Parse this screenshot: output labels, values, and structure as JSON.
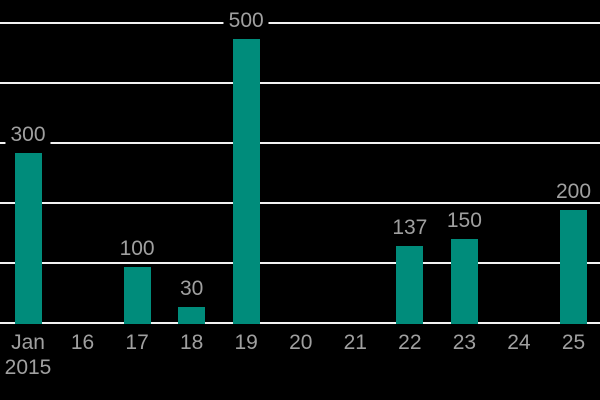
{
  "chart_data": {
    "type": "bar",
    "title": "",
    "xlabel": "",
    "ylabel": "",
    "categories": [
      "Jan 2015",
      "16",
      "17",
      "18",
      "19",
      "20",
      "21",
      "22",
      "23",
      "24",
      "25"
    ],
    "x_tick_lines": [
      [
        "Jan",
        "2015"
      ],
      [
        "16"
      ],
      [
        "17"
      ],
      [
        "18"
      ],
      [
        "19"
      ],
      [
        "20"
      ],
      [
        "21"
      ],
      [
        "22"
      ],
      [
        "23"
      ],
      [
        "24"
      ],
      [
        "25"
      ]
    ],
    "values": [
      300,
      0,
      100,
      30,
      500,
      0,
      0,
      137,
      150,
      0,
      200
    ],
    "data_labels": [
      "300",
      "",
      "100",
      "30",
      "500",
      "",
      "",
      "137",
      "150",
      "",
      "200"
    ],
    "ylim": [
      0,
      526
    ],
    "y_axis_labels_visible": false,
    "gridlines": "horizontal",
    "legend": "none",
    "colors": {
      "background": "#000000",
      "bar": "#008C7B",
      "grid": "#F2F2F2",
      "text": "#A0A0A0"
    }
  }
}
